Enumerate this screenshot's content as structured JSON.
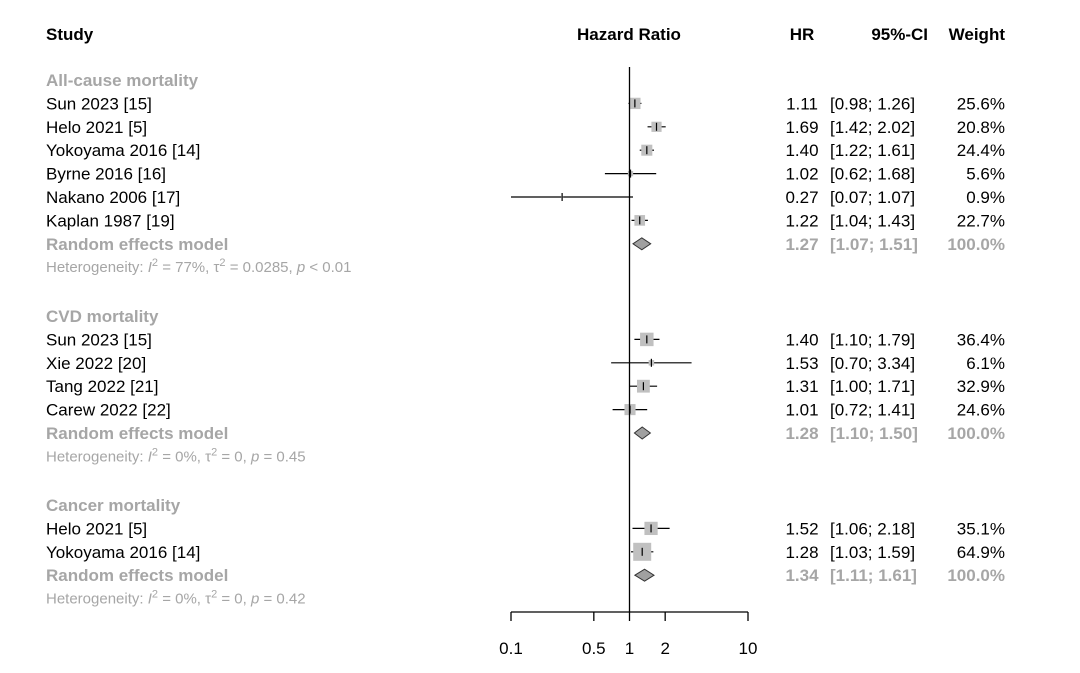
{
  "headers": {
    "study": "Study",
    "effect": "Hazard Ratio",
    "hr": "HR",
    "ci": "95%-CI",
    "weight": "Weight"
  },
  "colors": {
    "square": "#c0c0c0",
    "diamond": "#a0a0a0",
    "gray_text": "#a6a6a6",
    "line": "#000000"
  },
  "chart_data": {
    "type": "forest",
    "scale": "log",
    "xlim": [
      0.1,
      10
    ],
    "ticks": [
      "0.1",
      "0.5",
      "1",
      "2",
      "10"
    ],
    "tick_values": [
      0.1,
      0.5,
      1,
      2,
      10
    ],
    "reference": 1,
    "groups": [
      {
        "name": "All-cause mortality",
        "studies": [
          {
            "label": "Sun 2023 [15]",
            "hr": 1.11,
            "lo": 0.98,
            "hi": 1.26,
            "hr_text": "1.11",
            "ci_text": "[0.98; 1.26]",
            "weight": 25.6,
            "weight_text": "25.6%"
          },
          {
            "label": "Helo 2021 [5]",
            "hr": 1.69,
            "lo": 1.42,
            "hi": 2.02,
            "hr_text": "1.69",
            "ci_text": "[1.42; 2.02]",
            "weight": 20.8,
            "weight_text": "20.8%"
          },
          {
            "label": "Yokoyama 2016 [14]",
            "hr": 1.4,
            "lo": 1.22,
            "hi": 1.61,
            "hr_text": "1.40",
            "ci_text": "[1.22; 1.61]",
            "weight": 24.4,
            "weight_text": "24.4%"
          },
          {
            "label": "Byrne 2016 [16]",
            "hr": 1.02,
            "lo": 0.62,
            "hi": 1.68,
            "hr_text": "1.02",
            "ci_text": "[0.62; 1.68]",
            "weight": 5.6,
            "weight_text": "5.6%"
          },
          {
            "label": "Nakano 2006 [17]",
            "hr": 0.27,
            "lo": 0.07,
            "hi": 1.07,
            "hr_text": "0.27",
            "ci_text": "[0.07; 1.07]",
            "weight": 0.9,
            "weight_text": "0.9%"
          },
          {
            "label": "Kaplan 1987 [19]",
            "hr": 1.22,
            "lo": 1.04,
            "hi": 1.43,
            "hr_text": "1.22",
            "ci_text": "[1.04; 1.43]",
            "weight": 22.7,
            "weight_text": "22.7%"
          }
        ],
        "model": {
          "label": "Random effects model",
          "hr": 1.27,
          "lo": 1.07,
          "hi": 1.51,
          "hr_text": "1.27",
          "ci_text": "[1.07; 1.51]",
          "weight_text": "100.0%"
        },
        "heterogeneity": {
          "prefix": "Heterogeneity: ",
          "i2": "= 77%, ",
          "tau2": "= 0.0285, ",
          "p": "< 0.01"
        }
      },
      {
        "name": "CVD mortality",
        "studies": [
          {
            "label": "Sun 2023 [15]",
            "hr": 1.4,
            "lo": 1.1,
            "hi": 1.79,
            "hr_text": "1.40",
            "ci_text": "[1.10; 1.79]",
            "weight": 36.4,
            "weight_text": "36.4%"
          },
          {
            "label": "Xie 2022 [20]",
            "hr": 1.53,
            "lo": 0.7,
            "hi": 3.34,
            "hr_text": "1.53",
            "ci_text": "[0.70; 3.34]",
            "weight": 6.1,
            "weight_text": "6.1%"
          },
          {
            "label": "Tang 2022 [21]",
            "hr": 1.31,
            "lo": 1.0,
            "hi": 1.71,
            "hr_text": "1.31",
            "ci_text": "[1.00; 1.71]",
            "weight": 32.9,
            "weight_text": "32.9%"
          },
          {
            "label": "Carew 2022 [22]",
            "hr": 1.01,
            "lo": 0.72,
            "hi": 1.41,
            "hr_text": "1.01",
            "ci_text": "[0.72; 1.41]",
            "weight": 24.6,
            "weight_text": "24.6%"
          }
        ],
        "model": {
          "label": "Random effects model",
          "hr": 1.28,
          "lo": 1.1,
          "hi": 1.5,
          "hr_text": "1.28",
          "ci_text": "[1.10; 1.50]",
          "weight_text": "100.0%"
        },
        "heterogeneity": {
          "prefix": "Heterogeneity: ",
          "i2": "= 0%, ",
          "tau2": "= 0, ",
          "p": "= 0.45"
        }
      },
      {
        "name": "Cancer mortality",
        "studies": [
          {
            "label": "Helo 2021 [5]",
            "hr": 1.52,
            "lo": 1.06,
            "hi": 2.18,
            "hr_text": "1.52",
            "ci_text": "[1.06; 2.18]",
            "weight": 35.1,
            "weight_text": "35.1%"
          },
          {
            "label": "Yokoyama 2016 [14]",
            "hr": 1.28,
            "lo": 1.03,
            "hi": 1.59,
            "hr_text": "1.28",
            "ci_text": "[1.03; 1.59]",
            "weight": 64.9,
            "weight_text": "64.9%"
          }
        ],
        "model": {
          "label": "Random effects model",
          "hr": 1.34,
          "lo": 1.11,
          "hi": 1.61,
          "hr_text": "1.34",
          "ci_text": "[1.11; 1.61]",
          "weight_text": "100.0%"
        },
        "heterogeneity": {
          "prefix": "Heterogeneity: ",
          "i2": "= 0%, ",
          "tau2": "= 0, ",
          "p": "= 0.42"
        }
      }
    ]
  }
}
